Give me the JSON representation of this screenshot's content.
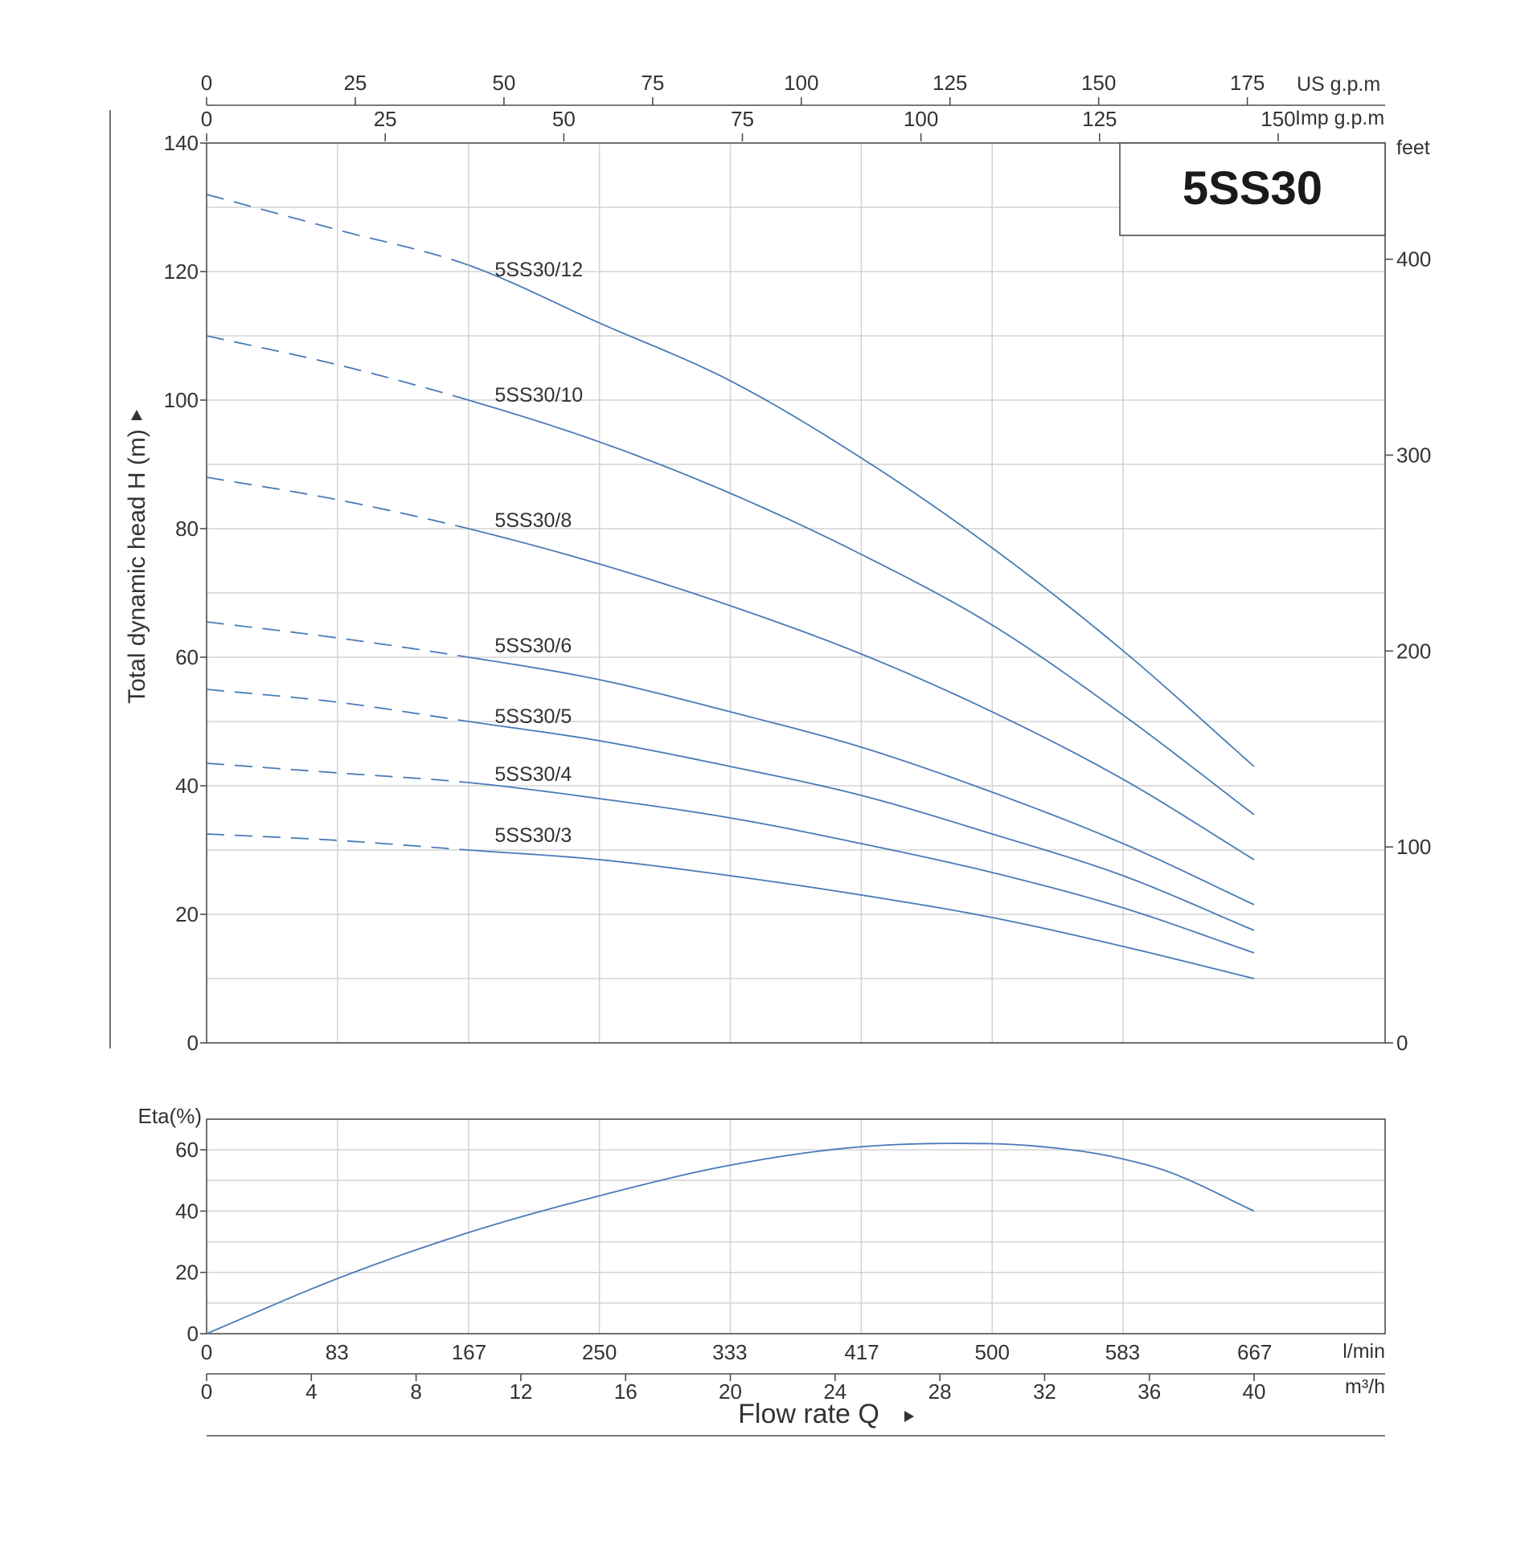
{
  "chart_data": [
    {
      "type": "line",
      "title": "5SS30",
      "ylabel": "Total dynamic head H (m)",
      "ylim": [
        0,
        140
      ],
      "y_ticks": [
        0,
        20,
        40,
        60,
        80,
        100,
        120,
        140
      ],
      "xlim": [
        0,
        40
      ],
      "x_unit": "m³/h",
      "grid": true,
      "secondary_y": {
        "label": "feet",
        "ticks": [
          0,
          100,
          200,
          300,
          400
        ]
      },
      "secondary_x_top": [
        {
          "label": "US g.p.m",
          "ticks": [
            0,
            25,
            50,
            75,
            100,
            125,
            150,
            175
          ]
        },
        {
          "label": "Imp g.p.m",
          "ticks": [
            0,
            25,
            50,
            75,
            100,
            125,
            150
          ]
        }
      ],
      "series": [
        {
          "name": "5SS30/12",
          "dashed_until": 10,
          "label_at": [
            11,
            120
          ],
          "x": [
            0,
            5,
            10,
            15,
            20,
            25,
            30,
            35,
            40
          ],
          "y": [
            132,
            126.5,
            121,
            112,
            103,
            91,
            77,
            61,
            43
          ]
        },
        {
          "name": "5SS30/10",
          "dashed_until": 10,
          "label_at": [
            11,
            100.5
          ],
          "x": [
            0,
            5,
            10,
            15,
            20,
            25,
            30,
            35,
            40
          ],
          "y": [
            110,
            105.5,
            100,
            93.5,
            85.5,
            76,
            65,
            51,
            35.5
          ]
        },
        {
          "name": "5SS30/8",
          "dashed_until": 10,
          "label_at": [
            11,
            81
          ],
          "x": [
            0,
            5,
            10,
            15,
            20,
            25,
            30,
            35,
            40
          ],
          "y": [
            88,
            84.5,
            80,
            74.5,
            68,
            60.5,
            51.5,
            41,
            28.5
          ]
        },
        {
          "name": "5SS30/6",
          "dashed_until": 10,
          "label_at": [
            11,
            61.5
          ],
          "x": [
            0,
            5,
            10,
            15,
            20,
            25,
            30,
            35,
            40
          ],
          "y": [
            65.5,
            63,
            60,
            56.5,
            51.5,
            46,
            39,
            31,
            21.5
          ]
        },
        {
          "name": "5SS30/5",
          "dashed_until": 10,
          "label_at": [
            11,
            50.5
          ],
          "x": [
            0,
            5,
            10,
            15,
            20,
            25,
            30,
            35,
            40
          ],
          "y": [
            55,
            53,
            50,
            47,
            43,
            38.5,
            32.5,
            26,
            17.5
          ]
        },
        {
          "name": "5SS30/4",
          "dashed_until": 10,
          "label_at": [
            11,
            41.5
          ],
          "x": [
            0,
            5,
            10,
            15,
            20,
            25,
            30,
            35,
            40
          ],
          "y": [
            43.5,
            42,
            40.5,
            38,
            35,
            31,
            26.5,
            21,
            14
          ]
        },
        {
          "name": "5SS30/3",
          "dashed_until": 10,
          "label_at": [
            11,
            32
          ],
          "x": [
            0,
            5,
            10,
            15,
            20,
            25,
            30,
            35,
            40
          ],
          "y": [
            32.5,
            31.5,
            30,
            28.5,
            26,
            23,
            19.5,
            15,
            10
          ]
        }
      ]
    },
    {
      "type": "line",
      "ylabel": "Eta(%)",
      "ylim": [
        0,
        70
      ],
      "y_ticks": [
        0,
        20,
        40,
        60
      ],
      "xlim": [
        0,
        40
      ],
      "grid": true,
      "x_axes": [
        {
          "unit": "l/min",
          "ticks": [
            0,
            83,
            167,
            250,
            333,
            417,
            500,
            583,
            667
          ]
        },
        {
          "unit": "m³/h",
          "ticks": [
            0,
            4,
            8,
            12,
            16,
            20,
            24,
            28,
            32,
            36,
            40
          ]
        }
      ],
      "xlabel": "Flow rate Q",
      "series": [
        {
          "x": [
            0,
            5,
            10,
            15,
            20,
            25,
            30,
            33,
            35,
            37,
            40
          ],
          "y": [
            0,
            18,
            33,
            45,
            55,
            61,
            62,
            60,
            57,
            52,
            40
          ]
        }
      ]
    }
  ]
}
